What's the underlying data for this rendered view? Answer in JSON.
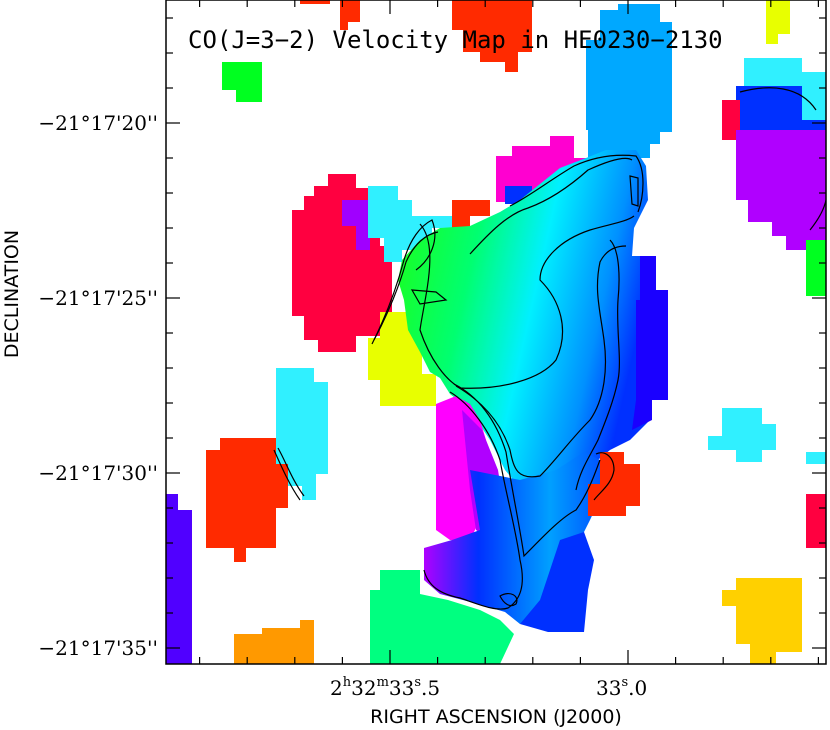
{
  "chart_data": {
    "type": "heatmap",
    "title": "CO(J=3−2) Velocity Map in HE0230−2130",
    "xlabel": "RIGHT ASCENSION (J2000)",
    "ylabel": "DECLINATION",
    "x_ticks": [
      {
        "label_ra": "2h32m33.5s",
        "parts": {
          "h": "2",
          "m": "32",
          "s_int": "33",
          "s_frac": "5"
        }
      },
      {
        "label_ra": "33.0s",
        "parts": {
          "s_int": "33",
          "s_frac": "0"
        }
      }
    ],
    "y_ticks": [
      "−21°17'20''",
      "−21°17'25''",
      "−21°17'30''",
      "−21°17'35''"
    ],
    "colormap": "hue (red → orange → yellow → green → cyan → blue → violet → magenta)",
    "contours": "black isovelocity contours over the central galaxy",
    "grid": false,
    "legend": "none"
  },
  "colors": {
    "red": "#ff0040",
    "red_orange": "#ff2a00",
    "orange": "#ff9900",
    "yellow": "#ffd000",
    "lime": "#e8ff00",
    "green": "#00ff20",
    "green2": "#30ff00",
    "spring": "#00ff80",
    "mint": "#00ffa0",
    "cyan": "#00ffff",
    "cyan2": "#30e8ff",
    "sky": "#00a8ff",
    "blue": "#0060ff",
    "blue2": "#0030ff",
    "deep_blue": "#1a00ff",
    "violet": "#6000ff",
    "purple": "#a000ff",
    "magenta": "#ff00ff",
    "pink": "#ff00b0",
    "contour": "#000000"
  }
}
